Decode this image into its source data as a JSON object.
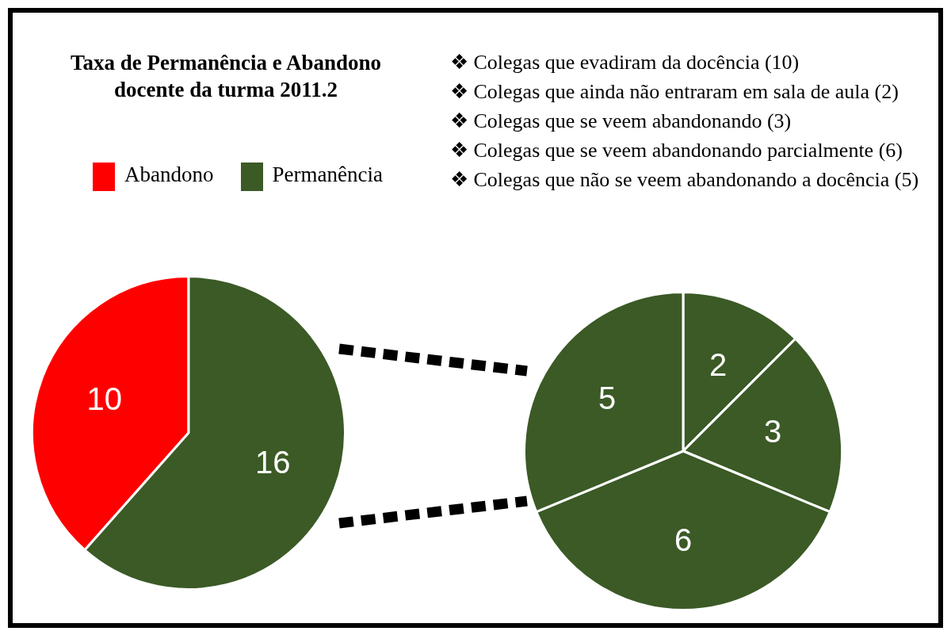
{
  "chart_data": [
    {
      "type": "pie",
      "title": "Taxa de Permanência e Abandono docente da turma 2011.2",
      "categories": [
        "Abandono",
        "Permanência"
      ],
      "values": [
        10,
        16
      ],
      "colors": [
        "#ff0000",
        "#3b5a26"
      ],
      "legend": "top",
      "data_labels": true
    },
    {
      "type": "pie",
      "categories": [
        null,
        null,
        null,
        null
      ],
      "values": [
        2,
        3,
        6,
        5
      ],
      "colors": [
        "#3b5a26",
        "#3b5a26",
        "#3b5a26",
        "#3b5a26"
      ],
      "data_labels": true,
      "annotations": [
        "❖ Colegas que evadiram da docência (10)",
        "❖ Colegas que ainda não entraram em sala de aula (2)",
        "❖ Colegas que se veem abandonando (3)",
        "❖ Colegas que se veem abandonando parcialmente (6)",
        "❖ Colegas que não se veem abandonando a docência (5)"
      ]
    }
  ]
}
